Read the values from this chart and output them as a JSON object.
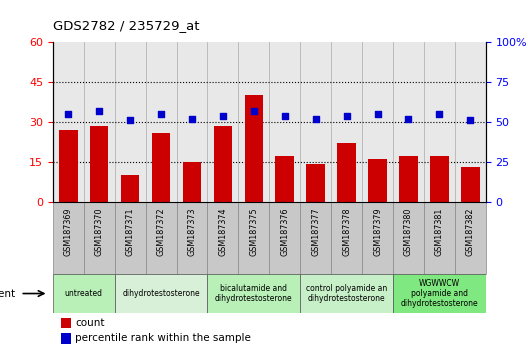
{
  "title": "GDS2782 / 235729_at",
  "samples": [
    "GSM187369",
    "GSM187370",
    "GSM187371",
    "GSM187372",
    "GSM187373",
    "GSM187374",
    "GSM187375",
    "GSM187376",
    "GSM187377",
    "GSM187378",
    "GSM187379",
    "GSM187380",
    "GSM187381",
    "GSM187382"
  ],
  "counts": [
    27,
    28.5,
    10,
    26,
    15,
    28.5,
    40,
    17,
    14,
    22,
    16,
    17,
    17,
    13
  ],
  "percentiles": [
    55,
    57,
    51,
    55,
    52,
    54,
    57,
    54,
    52,
    54,
    55,
    52,
    55,
    51
  ],
  "ylim_left": [
    0,
    60
  ],
  "ylim_right": [
    0,
    100
  ],
  "yticks_left": [
    0,
    15,
    30,
    45,
    60
  ],
  "yticks_right": [
    0,
    25,
    50,
    75,
    100
  ],
  "ytick_labels_right": [
    "0",
    "25",
    "50",
    "75",
    "100%"
  ],
  "bar_color": "#cc0000",
  "dot_color": "#0000cc",
  "plot_bg": "#e8e8e8",
  "tick_bg": "#c8c8c8",
  "groups": [
    {
      "label": "untreated",
      "indices": [
        0,
        1
      ],
      "color": "#b8f0b8"
    },
    {
      "label": "dihydrotestosterone",
      "indices": [
        2,
        3,
        4
      ],
      "color": "#d8f0d8"
    },
    {
      "label": "bicalutamide and\ndihydrotestosterone",
      "indices": [
        5,
        6,
        7
      ],
      "color": "#b8f0b8"
    },
    {
      "label": "control polyamide an\ndihydrotestosterone",
      "indices": [
        8,
        9,
        10
      ],
      "color": "#c8f0c8"
    },
    {
      "label": "WGWWCW\npolyamide and\ndihydrotestosterone",
      "indices": [
        11,
        12,
        13
      ],
      "color": "#80e880"
    }
  ],
  "legend_bar_label": "count",
  "legend_dot_label": "percentile rank within the sample",
  "agent_label": "agent"
}
